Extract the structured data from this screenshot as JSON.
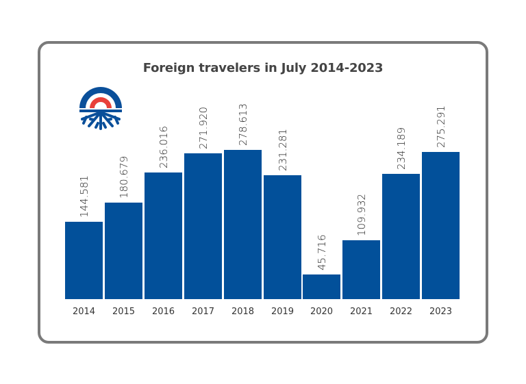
{
  "chart_data": {
    "type": "bar",
    "title": "Foreign travelers in July 2014-2023",
    "categories": [
      "2014",
      "2015",
      "2016",
      "2017",
      "2018",
      "2019",
      "2020",
      "2021",
      "2022",
      "2023"
    ],
    "values": [
      144581,
      180679,
      236016,
      271920,
      278613,
      231281,
      45716,
      109932,
      234189,
      275291
    ],
    "value_labels": [
      "144.581",
      "180.679",
      "236.016",
      "271.920",
      "278.613",
      "231.281",
      "45.716",
      "109.932",
      "234.189",
      "275.291"
    ],
    "xlabel": "",
    "ylabel": "",
    "grid": false,
    "legend": null,
    "bar_color": "#02509a"
  },
  "header": {
    "title": "Foreign travelers in July 2014-2023"
  },
  "logo": {
    "icon": "sun-snowflake-logo-icon",
    "colors": {
      "blue": "#0a4f9a",
      "red": "#e8403a"
    }
  },
  "colors": {
    "bar": "#02509a",
    "border": "#7a7a7a",
    "title": "#444444"
  }
}
